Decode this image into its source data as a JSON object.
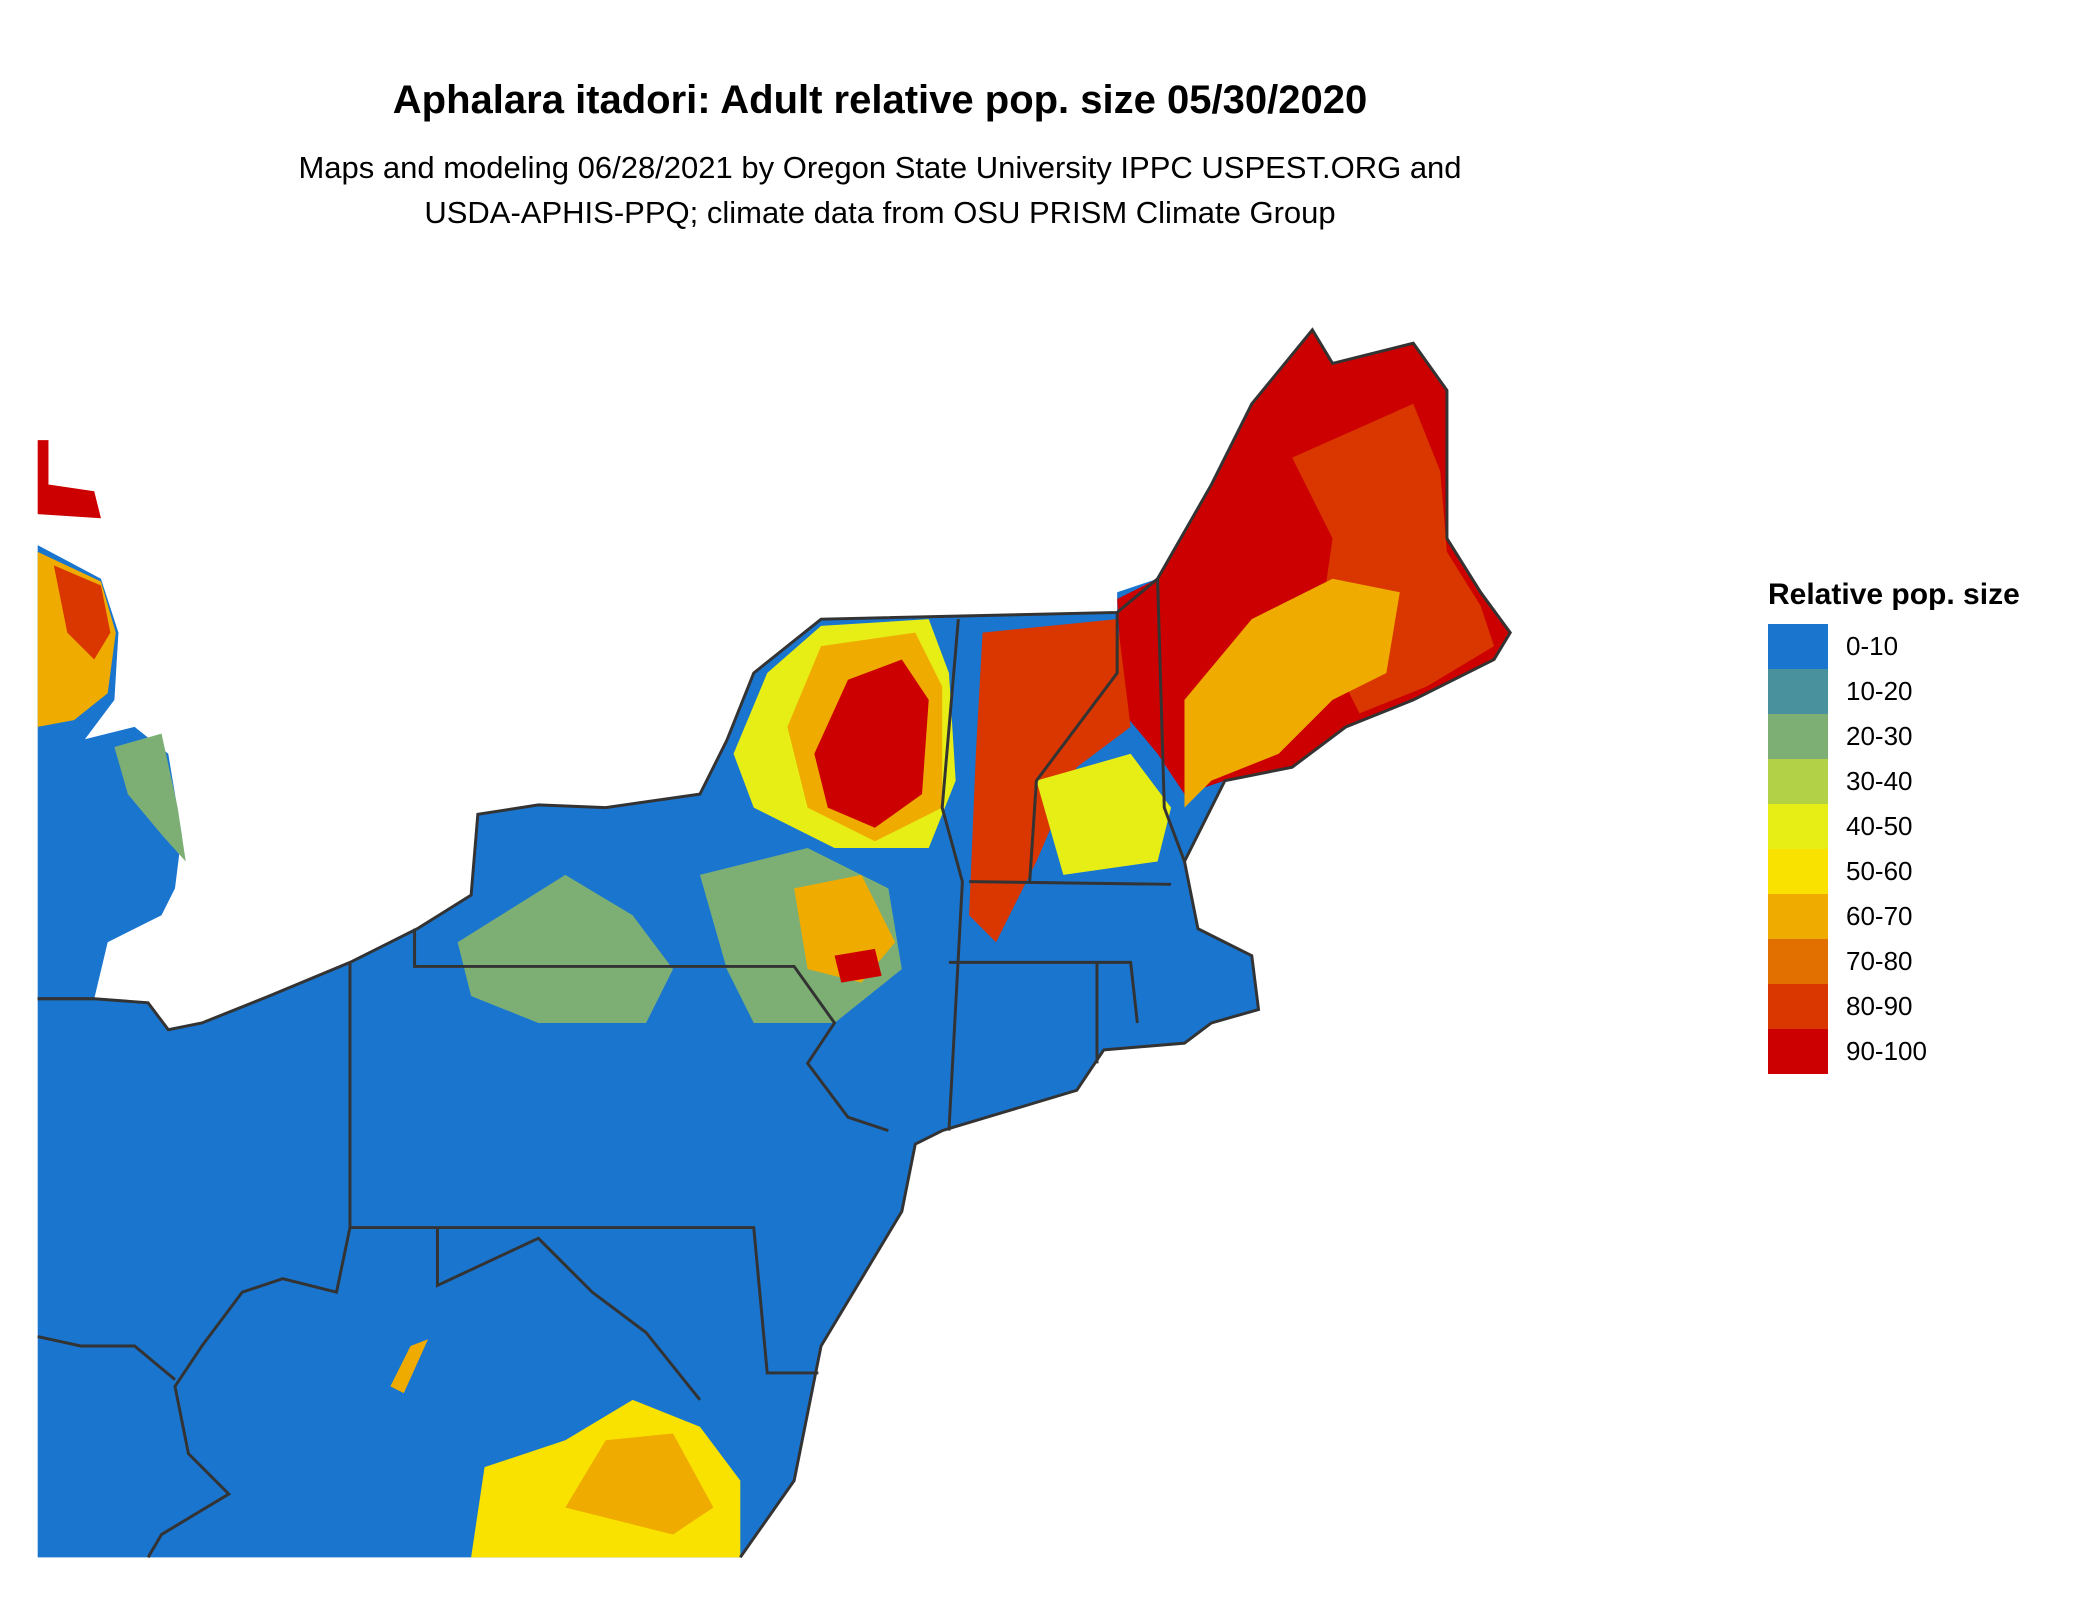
{
  "title": "Aphalara itadori: Adult relative pop. size 05/30/2020",
  "subtitle_lines": [
    "Maps and modeling 06/28/2021 by Oregon State University IPPC USPEST.ORG and",
    "USDA-APHIS-PPQ; climate data from OSU PRISM Climate Group"
  ],
  "legend": {
    "title": "Relative pop. size",
    "items": [
      {
        "label": "0-10",
        "color": "#1a75cf"
      },
      {
        "label": "10-20",
        "color": "#4a919e"
      },
      {
        "label": "20-30",
        "color": "#7daf74"
      },
      {
        "label": "30-40",
        "color": "#b2d146"
      },
      {
        "label": "40-50",
        "color": "#e6ee16"
      },
      {
        "label": "50-60",
        "color": "#f9e100"
      },
      {
        "label": "60-70",
        "color": "#efab00"
      },
      {
        "label": "70-80",
        "color": "#e27000"
      },
      {
        "label": "80-90",
        "color": "#d93600"
      },
      {
        "label": "90-100",
        "color": "#cc0000"
      }
    ]
  },
  "map": {
    "region": "Northeastern United States",
    "border_color": "#333333"
  }
}
